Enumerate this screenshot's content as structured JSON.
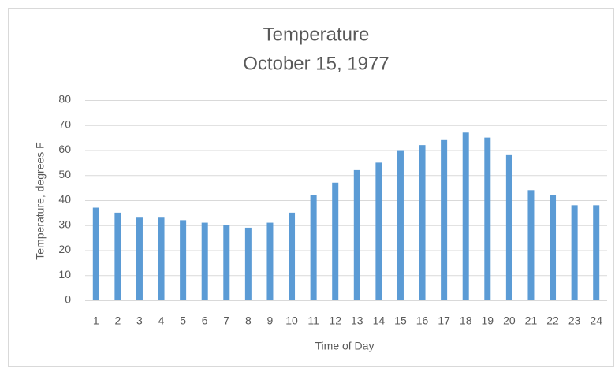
{
  "chart_data": {
    "type": "bar",
    "title": "Temperature",
    "subtitle": "October 15, 1977",
    "x_label": "Time of Day",
    "y_label": "Temperature, degrees F",
    "categories": [
      "1",
      "2",
      "3",
      "4",
      "5",
      "6",
      "7",
      "8",
      "9",
      "10",
      "11",
      "12",
      "13",
      "14",
      "15",
      "16",
      "17",
      "18",
      "19",
      "20",
      "21",
      "22",
      "23",
      "24"
    ],
    "values": [
      37,
      35,
      33,
      33,
      32,
      31,
      30,
      29,
      31,
      35,
      42,
      47,
      52,
      55,
      60,
      62,
      64,
      67,
      65,
      58,
      44,
      42,
      38,
      38
    ],
    "color": "#5b9bd5",
    "ylim": [
      0,
      80
    ],
    "yticks": [
      0,
      10,
      20,
      30,
      40,
      50,
      60,
      70,
      80
    ],
    "grid": true
  }
}
